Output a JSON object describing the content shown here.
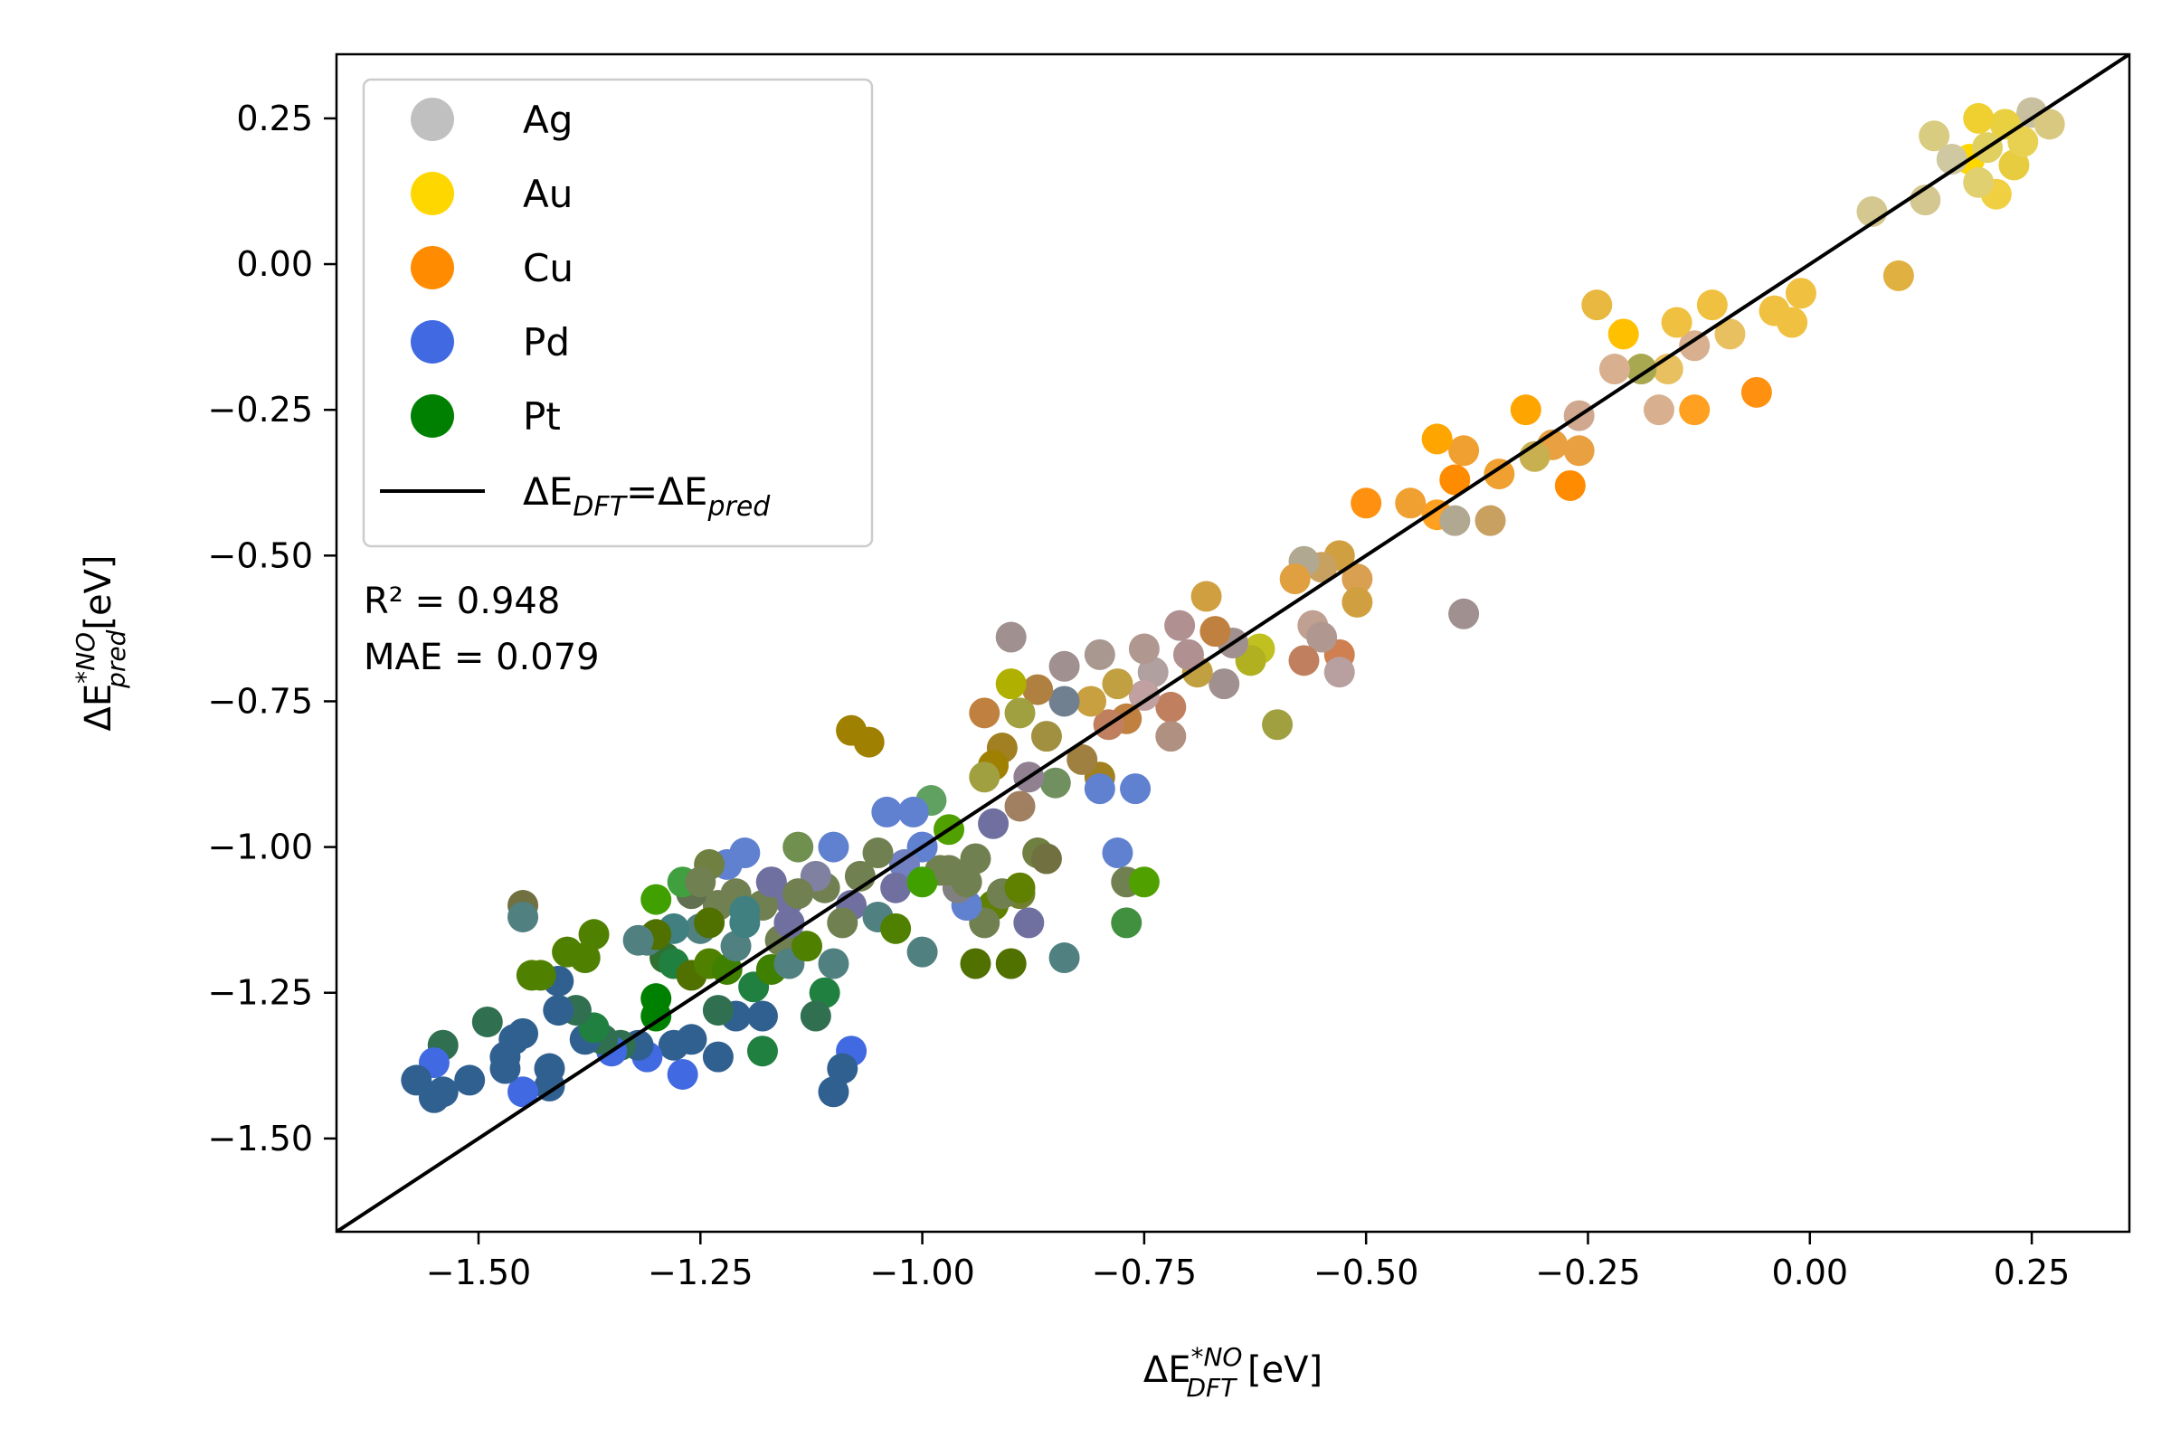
{
  "chart_data": {
    "type": "scatter",
    "xlabel": "ΔE*NO DFT [eV]",
    "xlabel_parts": {
      "main": "ΔE",
      "sup": "*NO",
      "sub": "DFT",
      "unit": " [eV]"
    },
    "ylabel": "ΔE*NO pred[eV]",
    "ylabel_parts": {
      "main": "ΔE",
      "sup": "*NO",
      "sub": "pred",
      "unit": "[eV]"
    },
    "xlim": [
      -1.66,
      0.36
    ],
    "ylim": [
      -1.66,
      0.36
    ],
    "xticks": [
      -1.5,
      -1.25,
      -1.0,
      -0.75,
      -0.5,
      -0.25,
      0.0,
      0.25
    ],
    "xtick_labels": [
      "−1.50",
      "−1.25",
      "−1.00",
      "−0.75",
      "−0.50",
      "−0.25",
      "0.00",
      "0.25"
    ],
    "yticks": [
      0.25,
      0.0,
      -0.25,
      -0.5,
      -0.75,
      -1.0,
      -1.25,
      -1.5
    ],
    "ytick_labels": [
      "0.25",
      "0.00",
      "−0.25",
      "−0.50",
      "−0.75",
      "−1.00",
      "−1.25",
      "−1.50"
    ],
    "grid": false,
    "legend_position": "top-left",
    "legend": [
      {
        "label": "Ag",
        "color": "#c0c0c0"
      },
      {
        "label": "Au",
        "color": "#ffd700"
      },
      {
        "label": "Cu",
        "color": "#ff8c00"
      },
      {
        "label": "Pd",
        "color": "#4169e1"
      },
      {
        "label": "Pt",
        "color": "#008000"
      }
    ],
    "parity_line": {
      "label_main": "ΔE",
      "label_sub1": "DFT",
      "label_eq": "=ΔE",
      "label_sub2": "pred",
      "from": [
        -1.66,
        -1.66
      ],
      "to": [
        0.36,
        0.36
      ],
      "color": "#000000"
    },
    "stats": {
      "r2": "R² = 0.948",
      "mae": "MAE = 0.079"
    },
    "points": [
      {
        "x": 0.25,
        "y": 0.26,
        "c": "#c9c0a0"
      },
      {
        "x": 0.22,
        "y": 0.24,
        "c": "#e8d040"
      },
      {
        "x": 0.19,
        "y": 0.25,
        "c": "#f0d030"
      },
      {
        "x": 0.18,
        "y": 0.18,
        "c": "#ffd700"
      },
      {
        "x": 0.2,
        "y": 0.2,
        "c": "#e0d060"
      },
      {
        "x": 0.23,
        "y": 0.17,
        "c": "#e8cc40"
      },
      {
        "x": 0.14,
        "y": 0.22,
        "c": "#d8cc80"
      },
      {
        "x": 0.16,
        "y": 0.18,
        "c": "#d0c8a0"
      },
      {
        "x": 0.27,
        "y": 0.24,
        "c": "#d8c880"
      },
      {
        "x": 0.21,
        "y": 0.12,
        "c": "#f0d040"
      },
      {
        "x": 0.13,
        "y": 0.11,
        "c": "#d4c890"
      },
      {
        "x": 0.07,
        "y": 0.09,
        "c": "#d4c890"
      },
      {
        "x": 0.19,
        "y": 0.14,
        "c": "#e0d070"
      },
      {
        "x": 0.1,
        "y": -0.02,
        "c": "#e0b040"
      },
      {
        "x": 0.24,
        "y": 0.21,
        "c": "#e8d050"
      },
      {
        "x": -0.01,
        "y": -0.05,
        "c": "#f0c040"
      },
      {
        "x": -0.02,
        "y": -0.1,
        "c": "#f0c040"
      },
      {
        "x": -0.04,
        "y": -0.08,
        "c": "#f0c040"
      },
      {
        "x": -0.06,
        "y": -0.22,
        "c": "#ff9010"
      },
      {
        "x": -0.09,
        "y": -0.12,
        "c": "#e8c060"
      },
      {
        "x": -0.11,
        "y": -0.07,
        "c": "#f0c040"
      },
      {
        "x": -0.13,
        "y": -0.14,
        "c": "#d8b090"
      },
      {
        "x": -0.15,
        "y": -0.1,
        "c": "#f0c040"
      },
      {
        "x": -0.16,
        "y": -0.18,
        "c": "#e8c060"
      },
      {
        "x": -0.13,
        "y": -0.25,
        "c": "#ffa020"
      },
      {
        "x": -0.17,
        "y": -0.25,
        "c": "#d8b090"
      },
      {
        "x": -0.19,
        "y": -0.18,
        "c": "#a8a850"
      },
      {
        "x": -0.21,
        "y": -0.12,
        "c": "#ffc000"
      },
      {
        "x": -0.24,
        "y": -0.07,
        "c": "#e8b840"
      },
      {
        "x": -0.22,
        "y": -0.18,
        "c": "#d8b090"
      },
      {
        "x": -0.26,
        "y": -0.26,
        "c": "#d0a890"
      },
      {
        "x": -0.26,
        "y": -0.32,
        "c": "#e8a040"
      },
      {
        "x": -0.27,
        "y": -0.38,
        "c": "#ff8c00"
      },
      {
        "x": -0.29,
        "y": -0.31,
        "c": "#e8a040"
      },
      {
        "x": -0.32,
        "y": -0.25,
        "c": "#ffa500"
      },
      {
        "x": -0.31,
        "y": -0.33,
        "c": "#c8b050"
      },
      {
        "x": -0.35,
        "y": -0.36,
        "c": "#f0a030"
      },
      {
        "x": -0.36,
        "y": -0.44,
        "c": "#c8a060"
      },
      {
        "x": -0.39,
        "y": -0.32,
        "c": "#f0a030"
      },
      {
        "x": -0.4,
        "y": -0.37,
        "c": "#ff8c00"
      },
      {
        "x": -0.42,
        "y": -0.3,
        "c": "#ffa500"
      },
      {
        "x": -0.42,
        "y": -0.43,
        "c": "#ffa020"
      },
      {
        "x": -0.4,
        "y": -0.44,
        "c": "#b0a890"
      },
      {
        "x": -0.45,
        "y": -0.41,
        "c": "#f0a030"
      },
      {
        "x": -0.5,
        "y": -0.41,
        "c": "#ff9010"
      },
      {
        "x": -0.39,
        "y": -0.6,
        "c": "#a09090"
      },
      {
        "x": -0.51,
        "y": -0.54,
        "c": "#d8a050"
      },
      {
        "x": -0.53,
        "y": -0.5,
        "c": "#d0a040"
      },
      {
        "x": -0.55,
        "y": -0.52,
        "c": "#c8a060"
      },
      {
        "x": -0.57,
        "y": -0.51,
        "c": "#b0a890"
      },
      {
        "x": -0.58,
        "y": -0.54,
        "c": "#e0a040"
      },
      {
        "x": -0.51,
        "y": -0.58,
        "c": "#d0a040"
      },
      {
        "x": -0.56,
        "y": -0.62,
        "c": "#c0a090"
      },
      {
        "x": -0.53,
        "y": -0.67,
        "c": "#d08050"
      },
      {
        "x": -0.55,
        "y": -0.64,
        "c": "#b09890"
      },
      {
        "x": -0.57,
        "y": -0.68,
        "c": "#c08060"
      },
      {
        "x": -0.53,
        "y": -0.7,
        "c": "#b8a0a0"
      },
      {
        "x": -0.6,
        "y": -0.79,
        "c": "#a0a040"
      },
      {
        "x": -0.62,
        "y": -0.66,
        "c": "#c0c020"
      },
      {
        "x": -0.63,
        "y": -0.68,
        "c": "#b0b020"
      },
      {
        "x": -0.65,
        "y": -0.65,
        "c": "#a09090"
      },
      {
        "x": -0.67,
        "y": -0.63,
        "c": "#c08040"
      },
      {
        "x": -0.68,
        "y": -0.57,
        "c": "#d0a040"
      },
      {
        "x": -0.66,
        "y": -0.72,
        "c": "#a09090"
      },
      {
        "x": -0.69,
        "y": -0.7,
        "c": "#c0a040"
      },
      {
        "x": -0.7,
        "y": -0.67,
        "c": "#b09090"
      },
      {
        "x": -0.71,
        "y": -0.62,
        "c": "#b09090"
      },
      {
        "x": -0.72,
        "y": -0.76,
        "c": "#c08060"
      },
      {
        "x": -0.72,
        "y": -0.81,
        "c": "#b09080"
      },
      {
        "x": -0.74,
        "y": -0.7,
        "c": "#b0a0a0"
      },
      {
        "x": -0.75,
        "y": -0.74,
        "c": "#c0a0a0"
      },
      {
        "x": -0.75,
        "y": -0.66,
        "c": "#b09890"
      },
      {
        "x": -0.77,
        "y": -0.78,
        "c": "#c08040"
      },
      {
        "x": -0.78,
        "y": -0.72,
        "c": "#c0a040"
      },
      {
        "x": -0.8,
        "y": -0.67,
        "c": "#a89890"
      },
      {
        "x": -0.79,
        "y": -0.79,
        "c": "#c08060"
      },
      {
        "x": -0.81,
        "y": -0.75,
        "c": "#c8a040"
      },
      {
        "x": -0.8,
        "y": -0.88,
        "c": "#a08020"
      },
      {
        "x": -0.82,
        "y": -0.85,
        "c": "#a08040"
      },
      {
        "x": -0.84,
        "y": -0.69,
        "c": "#a09090"
      },
      {
        "x": -0.84,
        "y": -0.75,
        "c": "#708090"
      },
      {
        "x": -0.85,
        "y": -0.89,
        "c": "#709060"
      },
      {
        "x": -0.86,
        "y": -0.81,
        "c": "#a09040"
      },
      {
        "x": -0.87,
        "y": -0.73,
        "c": "#b08040"
      },
      {
        "x": -0.88,
        "y": -0.88,
        "c": "#908090"
      },
      {
        "x": -0.89,
        "y": -0.77,
        "c": "#a0a040"
      },
      {
        "x": -0.9,
        "y": -0.72,
        "c": "#b0b000"
      },
      {
        "x": -0.9,
        "y": -0.64,
        "c": "#a09090"
      },
      {
        "x": -0.91,
        "y": -0.83,
        "c": "#a08020"
      },
      {
        "x": -0.93,
        "y": -0.77,
        "c": "#c08040"
      },
      {
        "x": -0.92,
        "y": -0.86,
        "c": "#a08000"
      },
      {
        "x": -0.93,
        "y": -0.88,
        "c": "#a0a040"
      },
      {
        "x": -0.92,
        "y": -0.96,
        "c": "#7070a0"
      },
      {
        "x": -0.89,
        "y": -0.93,
        "c": "#a08060"
      },
      {
        "x": -0.87,
        "y": -1.01,
        "c": "#708040"
      },
      {
        "x": -0.86,
        "y": -1.02,
        "c": "#707040"
      },
      {
        "x": -0.8,
        "y": -0.9,
        "c": "#6080d0"
      },
      {
        "x": -0.78,
        "y": -1.01,
        "c": "#6080d0"
      },
      {
        "x": -0.76,
        "y": -0.9,
        "c": "#6080d0"
      },
      {
        "x": -0.77,
        "y": -1.06,
        "c": "#708050"
      },
      {
        "x": -0.75,
        "y": -1.06,
        "c": "#50a000"
      },
      {
        "x": -0.77,
        "y": -1.13,
        "c": "#409040"
      },
      {
        "x": -0.84,
        "y": -1.19,
        "c": "#508080"
      },
      {
        "x": -0.88,
        "y": -1.13,
        "c": "#7070a0"
      },
      {
        "x": -0.89,
        "y": -1.08,
        "c": "#708030"
      },
      {
        "x": -0.9,
        "y": -1.2,
        "c": "#507000"
      },
      {
        "x": -0.92,
        "y": -1.1,
        "c": "#608000"
      },
      {
        "x": -0.93,
        "y": -1.13,
        "c": "#708050"
      },
      {
        "x": -0.94,
        "y": -1.2,
        "c": "#507000"
      },
      {
        "x": -0.95,
        "y": -1.1,
        "c": "#6080d0"
      },
      {
        "x": -0.96,
        "y": -1.07,
        "c": "#808080"
      },
      {
        "x": -0.97,
        "y": -0.97,
        "c": "#50a000"
      },
      {
        "x": -0.99,
        "y": -0.92,
        "c": "#60a060"
      },
      {
        "x": -0.98,
        "y": -1.04,
        "c": "#708050"
      },
      {
        "x": -1.0,
        "y": -1.0,
        "c": "#6080d0"
      },
      {
        "x": -1.01,
        "y": -0.94,
        "c": "#6080d0"
      },
      {
        "x": -1.02,
        "y": -1.03,
        "c": "#7080c0"
      },
      {
        "x": -1.03,
        "y": -1.07,
        "c": "#7070a0"
      },
      {
        "x": -1.04,
        "y": -0.94,
        "c": "#6080d0"
      },
      {
        "x": -1.05,
        "y": -1.01,
        "c": "#708050"
      },
      {
        "x": -1.06,
        "y": -0.82,
        "c": "#a08000"
      },
      {
        "x": -1.08,
        "y": -0.8,
        "c": "#a08000"
      },
      {
        "x": -1.07,
        "y": -1.05,
        "c": "#708050"
      },
      {
        "x": -1.08,
        "y": -1.1,
        "c": "#7070a0"
      },
      {
        "x": -1.1,
        "y": -1.0,
        "c": "#6080d0"
      },
      {
        "x": -1.11,
        "y": -1.07,
        "c": "#708050"
      },
      {
        "x": -1.12,
        "y": -1.05,
        "c": "#8080a0"
      },
      {
        "x": -1.14,
        "y": -1.0,
        "c": "#709050"
      },
      {
        "x": -1.15,
        "y": -1.09,
        "c": "#7070a0"
      },
      {
        "x": -1.16,
        "y": -1.16,
        "c": "#708050"
      },
      {
        "x": -1.17,
        "y": -1.06,
        "c": "#7070a0"
      },
      {
        "x": -1.18,
        "y": -1.1,
        "c": "#708050"
      },
      {
        "x": -1.2,
        "y": -1.01,
        "c": "#6080d0"
      },
      {
        "x": -1.21,
        "y": -1.08,
        "c": "#708050"
      },
      {
        "x": -1.22,
        "y": -1.03,
        "c": "#6080d0"
      },
      {
        "x": -1.24,
        "y": -1.03,
        "c": "#708040"
      },
      {
        "x": -1.23,
        "y": -1.1,
        "c": "#708050"
      },
      {
        "x": -1.25,
        "y": -1.14,
        "c": "#508080"
      },
      {
        "x": -1.26,
        "y": -1.08,
        "c": "#607050"
      },
      {
        "x": -1.27,
        "y": -1.06,
        "c": "#40a040"
      },
      {
        "x": -1.28,
        "y": -1.14,
        "c": "#408080"
      },
      {
        "x": -1.3,
        "y": -1.09,
        "c": "#40a000"
      },
      {
        "x": -1.29,
        "y": -1.19,
        "c": "#307030"
      },
      {
        "x": -1.31,
        "y": -1.16,
        "c": "#508080"
      },
      {
        "x": -1.3,
        "y": -1.15,
        "c": "#507000"
      },
      {
        "x": -1.28,
        "y": -1.2,
        "c": "#208040"
      },
      {
        "x": -1.26,
        "y": -1.22,
        "c": "#507000"
      },
      {
        "x": -1.24,
        "y": -1.2,
        "c": "#508000"
      },
      {
        "x": -1.22,
        "y": -1.21,
        "c": "#408000"
      },
      {
        "x": -1.21,
        "y": -1.17,
        "c": "#508080"
      },
      {
        "x": -1.2,
        "y": -1.13,
        "c": "#408080"
      },
      {
        "x": -1.19,
        "y": -1.24,
        "c": "#208040"
      },
      {
        "x": -1.17,
        "y": -1.21,
        "c": "#408000"
      },
      {
        "x": -1.15,
        "y": -1.2,
        "c": "#508080"
      },
      {
        "x": -1.13,
        "y": -1.17,
        "c": "#508000"
      },
      {
        "x": -1.11,
        "y": -1.25,
        "c": "#208040"
      },
      {
        "x": -1.1,
        "y": -1.2,
        "c": "#508080"
      },
      {
        "x": -1.12,
        "y": -1.29,
        "c": "#307050"
      },
      {
        "x": -1.09,
        "y": -1.13,
        "c": "#708050"
      },
      {
        "x": -1.08,
        "y": -1.35,
        "c": "#4169e1"
      },
      {
        "x": -1.09,
        "y": -1.38,
        "c": "#306090"
      },
      {
        "x": -1.1,
        "y": -1.42,
        "c": "#306090"
      },
      {
        "x": -1.18,
        "y": -1.35,
        "c": "#208040"
      },
      {
        "x": -1.18,
        "y": -1.29,
        "c": "#306090"
      },
      {
        "x": -1.21,
        "y": -1.29,
        "c": "#306090"
      },
      {
        "x": -1.23,
        "y": -1.36,
        "c": "#306090"
      },
      {
        "x": -1.23,
        "y": -1.28,
        "c": "#307050"
      },
      {
        "x": -1.26,
        "y": -1.33,
        "c": "#306090"
      },
      {
        "x": -1.27,
        "y": -1.39,
        "c": "#4169e1"
      },
      {
        "x": -1.28,
        "y": -1.34,
        "c": "#306090"
      },
      {
        "x": -1.3,
        "y": -1.26,
        "c": "#008000"
      },
      {
        "x": -1.3,
        "y": -1.29,
        "c": "#008000"
      },
      {
        "x": -1.31,
        "y": -1.36,
        "c": "#4169e1"
      },
      {
        "x": -1.32,
        "y": -1.34,
        "c": "#306090"
      },
      {
        "x": -1.34,
        "y": -1.34,
        "c": "#307050"
      },
      {
        "x": -1.35,
        "y": -1.35,
        "c": "#4169e1"
      },
      {
        "x": -1.36,
        "y": -1.33,
        "c": "#307050"
      },
      {
        "x": -1.38,
        "y": -1.33,
        "c": "#306090"
      },
      {
        "x": -1.37,
        "y": -1.31,
        "c": "#208040"
      },
      {
        "x": -1.39,
        "y": -1.28,
        "c": "#307050"
      },
      {
        "x": -1.41,
        "y": -1.28,
        "c": "#306090"
      },
      {
        "x": -1.41,
        "y": -1.23,
        "c": "#306090"
      },
      {
        "x": -1.43,
        "y": -1.22,
        "c": "#508000"
      },
      {
        "x": -1.44,
        "y": -1.22,
        "c": "#508000"
      },
      {
        "x": -1.42,
        "y": -1.38,
        "c": "#306090"
      },
      {
        "x": -1.42,
        "y": -1.41,
        "c": "#306090"
      },
      {
        "x": -1.45,
        "y": -1.42,
        "c": "#4169e1"
      },
      {
        "x": -1.45,
        "y": -1.32,
        "c": "#306090"
      },
      {
        "x": -1.46,
        "y": -1.33,
        "c": "#306090"
      },
      {
        "x": -1.47,
        "y": -1.36,
        "c": "#306090"
      },
      {
        "x": -1.47,
        "y": -1.38,
        "c": "#306090"
      },
      {
        "x": -1.49,
        "y": -1.3,
        "c": "#307050"
      },
      {
        "x": -1.51,
        "y": -1.4,
        "c": "#306090"
      },
      {
        "x": -1.54,
        "y": -1.34,
        "c": "#307050"
      },
      {
        "x": -1.55,
        "y": -1.37,
        "c": "#4169e1"
      },
      {
        "x": -1.54,
        "y": -1.42,
        "c": "#306090"
      },
      {
        "x": -1.55,
        "y": -1.43,
        "c": "#306090"
      },
      {
        "x": -1.57,
        "y": -1.4,
        "c": "#306090"
      },
      {
        "x": -1.45,
        "y": -1.1,
        "c": "#707040"
      },
      {
        "x": -1.45,
        "y": -1.12,
        "c": "#508080"
      },
      {
        "x": -1.4,
        "y": -1.18,
        "c": "#508000"
      },
      {
        "x": -1.38,
        "y": -1.19,
        "c": "#508000"
      },
      {
        "x": -1.37,
        "y": -1.15,
        "c": "#508000"
      },
      {
        "x": -1.32,
        "y": -1.16,
        "c": "#508080"
      },
      {
        "x": -1.25,
        "y": -1.06,
        "c": "#708050"
      },
      {
        "x": -1.24,
        "y": -1.13,
        "c": "#507000"
      },
      {
        "x": -1.2,
        "y": -1.11,
        "c": "#408080"
      },
      {
        "x": -1.17,
        "y": -1.06,
        "c": "#7070a0"
      },
      {
        "x": -1.15,
        "y": -1.13,
        "c": "#7070a0"
      },
      {
        "x": -1.14,
        "y": -1.08,
        "c": "#708050"
      },
      {
        "x": -1.05,
        "y": -1.12,
        "c": "#508080"
      },
      {
        "x": -1.03,
        "y": -1.14,
        "c": "#508000"
      },
      {
        "x": -1.0,
        "y": -1.06,
        "c": "#40a000"
      },
      {
        "x": -1.0,
        "y": -1.18,
        "c": "#508080"
      },
      {
        "x": -0.97,
        "y": -1.04,
        "c": "#708050"
      },
      {
        "x": -0.95,
        "y": -1.06,
        "c": "#708050"
      },
      {
        "x": -0.94,
        "y": -1.02,
        "c": "#708050"
      },
      {
        "x": -0.91,
        "y": -1.08,
        "c": "#708050"
      },
      {
        "x": -0.89,
        "y": -1.07,
        "c": "#608000"
      }
    ]
  }
}
